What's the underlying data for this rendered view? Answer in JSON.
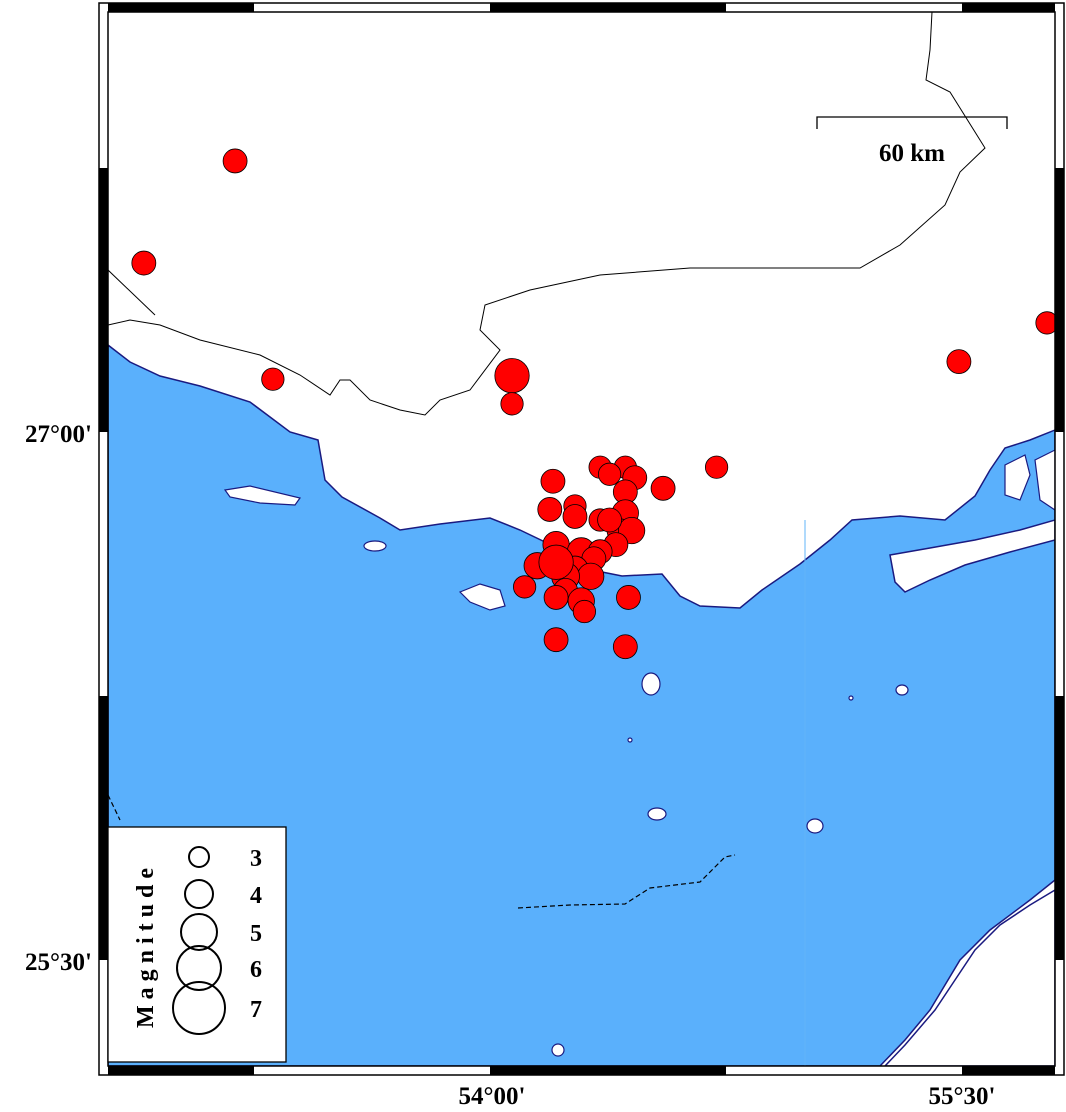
{
  "map": {
    "projection_extent": {
      "lon_min": 52.79,
      "lon_max": 55.8,
      "lat_min": 25.2,
      "lat_max": 28.19
    },
    "colors": {
      "sea": "#5ab0fc",
      "land": "#ffffff",
      "coastline": "#1a1a80",
      "event_fill": "#ff0000",
      "event_stroke": "#000000"
    },
    "axis_labels": {
      "lat_27": "27°00'",
      "lat_2530": "25°30'",
      "lon_54": "54°00'",
      "lon_5530": "55°30'"
    },
    "scale_bar": {
      "label": "60 km"
    },
    "legend": {
      "title": "Magnitude",
      "entries": [
        {
          "label": "3",
          "magnitude": 3
        },
        {
          "label": "4",
          "magnitude": 4
        },
        {
          "label": "5",
          "magnitude": 5
        },
        {
          "label": "6",
          "magnitude": 6
        },
        {
          "label": "7",
          "magnitude": 7
        }
      ]
    },
    "events": [
      {
        "lon": 53.19,
        "lat": 27.77,
        "mag": 3.5
      },
      {
        "lon": 52.9,
        "lat": 27.48,
        "mag": 3.5
      },
      {
        "lon": 53.31,
        "lat": 27.15,
        "mag": 3.3
      },
      {
        "lon": 54.07,
        "lat": 27.16,
        "mag": 4.8
      },
      {
        "lon": 54.07,
        "lat": 27.08,
        "mag": 3.3
      },
      {
        "lon": 55.49,
        "lat": 27.2,
        "mag": 3.5
      },
      {
        "lon": 55.77,
        "lat": 27.31,
        "mag": 3.3
      },
      {
        "lon": 54.72,
        "lat": 26.9,
        "mag": 3.3
      },
      {
        "lon": 54.55,
        "lat": 26.84,
        "mag": 3.5
      },
      {
        "lon": 54.2,
        "lat": 26.86,
        "mag": 3.5
      },
      {
        "lon": 54.35,
        "lat": 26.9,
        "mag": 3.3
      },
      {
        "lon": 54.43,
        "lat": 26.9,
        "mag": 3.3
      },
      {
        "lon": 54.38,
        "lat": 26.88,
        "mag": 3.3
      },
      {
        "lon": 54.46,
        "lat": 26.87,
        "mag": 3.5
      },
      {
        "lon": 54.19,
        "lat": 26.78,
        "mag": 3.5
      },
      {
        "lon": 54.27,
        "lat": 26.79,
        "mag": 3.3
      },
      {
        "lon": 54.27,
        "lat": 26.76,
        "mag": 3.5
      },
      {
        "lon": 54.35,
        "lat": 26.75,
        "mag": 3.3
      },
      {
        "lon": 54.43,
        "lat": 26.83,
        "mag": 3.5
      },
      {
        "lon": 54.43,
        "lat": 26.77,
        "mag": 3.8
      },
      {
        "lon": 54.41,
        "lat": 26.72,
        "mag": 3.5
      },
      {
        "lon": 54.45,
        "lat": 26.72,
        "mag": 3.8
      },
      {
        "lon": 54.4,
        "lat": 26.68,
        "mag": 3.5
      },
      {
        "lon": 54.21,
        "lat": 26.68,
        "mag": 3.8
      },
      {
        "lon": 54.29,
        "lat": 26.66,
        "mag": 4.0
      },
      {
        "lon": 54.35,
        "lat": 26.66,
        "mag": 3.5
      },
      {
        "lon": 54.15,
        "lat": 26.62,
        "mag": 3.8
      },
      {
        "lon": 54.33,
        "lat": 26.64,
        "mag": 3.5
      },
      {
        "lon": 54.38,
        "lat": 26.75,
        "mag": 3.5
      },
      {
        "lon": 54.27,
        "lat": 26.61,
        "mag": 3.8
      },
      {
        "lon": 54.32,
        "lat": 26.59,
        "mag": 3.8
      },
      {
        "lon": 54.24,
        "lat": 26.59,
        "mag": 4.0
      },
      {
        "lon": 54.24,
        "lat": 26.55,
        "mag": 3.5
      },
      {
        "lon": 54.21,
        "lat": 26.53,
        "mag": 3.5
      },
      {
        "lon": 54.29,
        "lat": 26.52,
        "mag": 3.8
      },
      {
        "lon": 54.3,
        "lat": 26.49,
        "mag": 3.3
      },
      {
        "lon": 54.11,
        "lat": 26.56,
        "mag": 3.3
      },
      {
        "lon": 54.44,
        "lat": 26.53,
        "mag": 3.5
      },
      {
        "lon": 54.21,
        "lat": 26.41,
        "mag": 3.5
      },
      {
        "lon": 54.43,
        "lat": 26.39,
        "mag": 3.5
      },
      {
        "lon": 54.21,
        "lat": 26.63,
        "mag": 4.8
      }
    ]
  }
}
